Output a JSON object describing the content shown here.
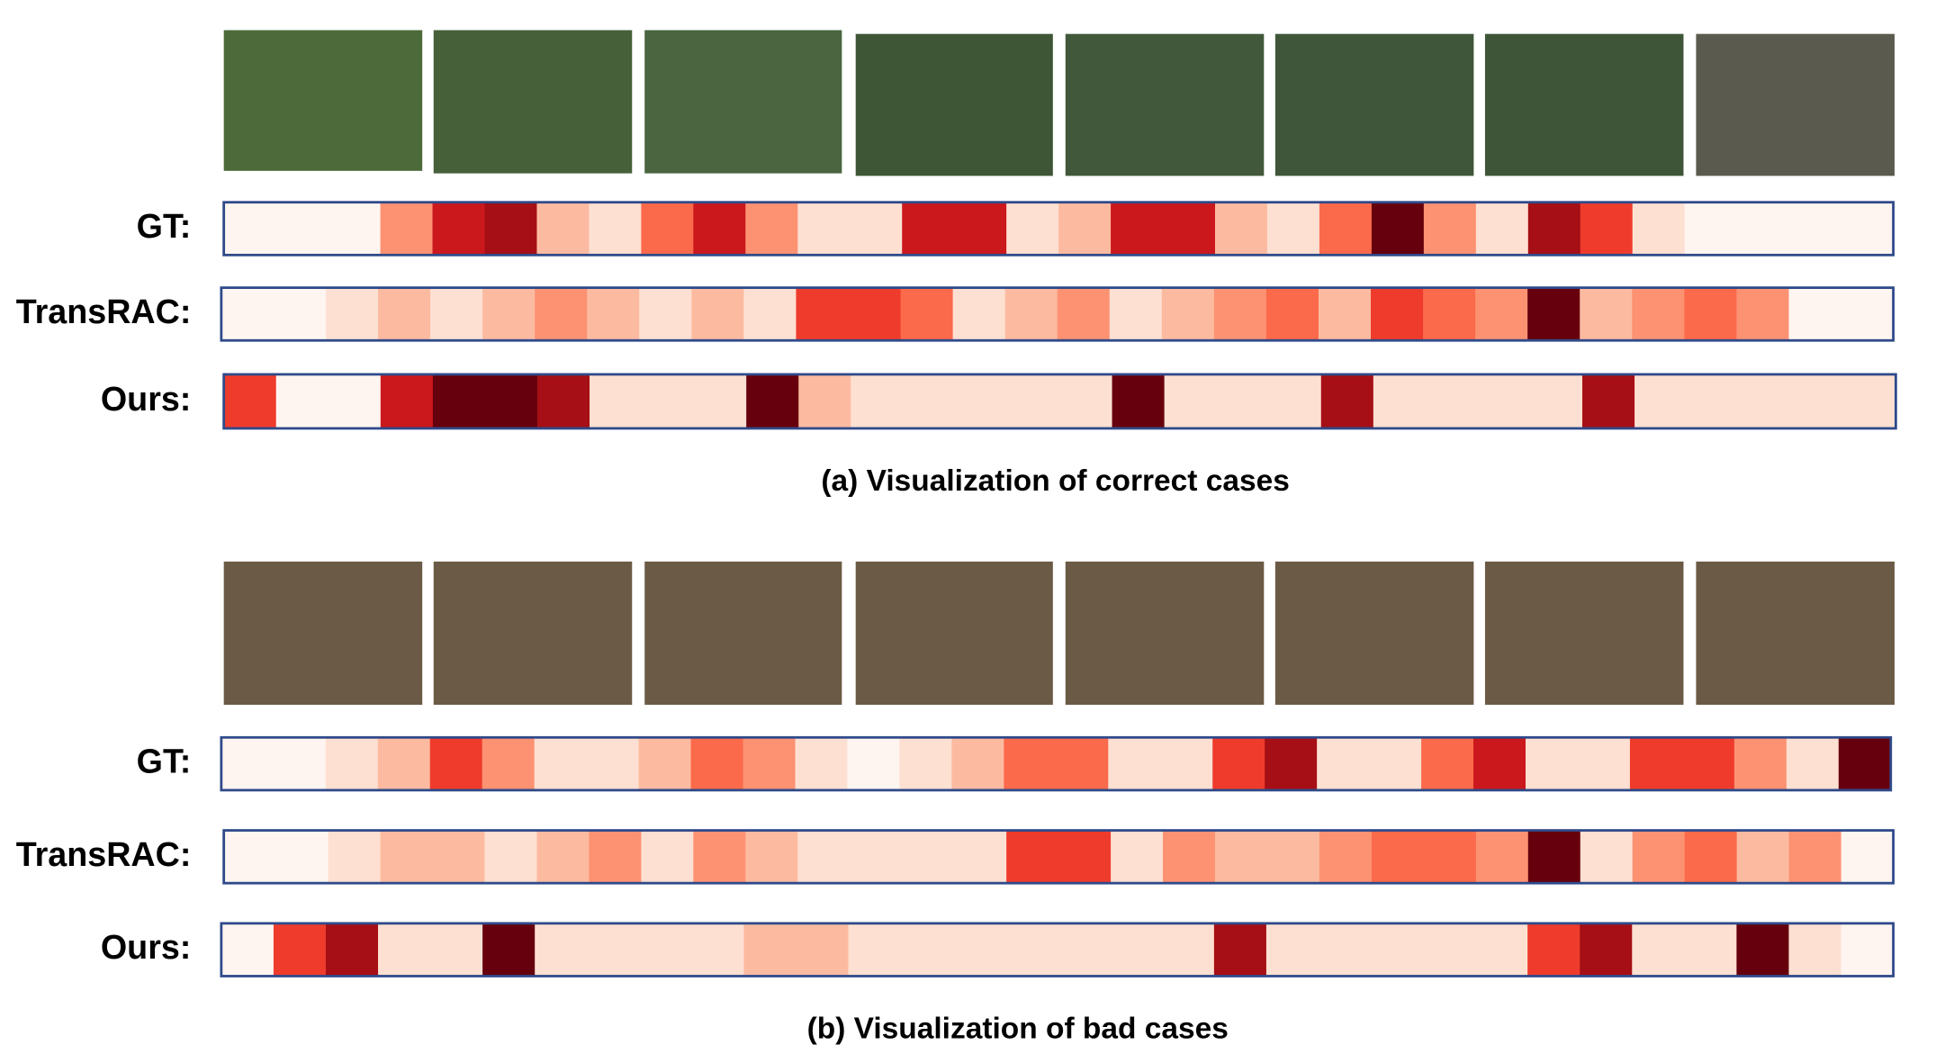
{
  "panels": [
    {
      "caption": "(a) Visualization of correct cases",
      "rows": [
        {
          "label": "GT:",
          "cells": [
            "#fff5f0",
            "#fff5f0",
            "#fff5f0",
            "#fc9272",
            "#cb181d",
            "#a50f15",
            "#fcbba1",
            "#fee0d2",
            "#fb6a4a",
            "#cb181d",
            "#fc9272",
            "#fee0d2",
            "#fee0d2",
            "#cb181d",
            "#cb181d",
            "#fee0d2",
            "#fcbba1",
            "#cb181d",
            "#cb181d",
            "#fcbba1",
            "#fee0d2",
            "#fb6a4a",
            "#67000d",
            "#fc9272",
            "#fee0d2",
            "#a50f15",
            "#ef3b2c",
            "#fee0d2",
            "#fff5f0",
            "#fff5f0",
            "#fff5f0",
            "#fff5f0"
          ]
        },
        {
          "label": "TransRAC:",
          "cells": [
            "#fff5f0",
            "#fff5f0",
            "#fee0d2",
            "#fcbba1",
            "#fee0d2",
            "#fcbba1",
            "#fc9272",
            "#fcbba1",
            "#fee0d2",
            "#fcbba1",
            "#fee0d2",
            "#ef3b2c",
            "#ef3b2c",
            "#fb6a4a",
            "#fee0d2",
            "#fcbba1",
            "#fc9272",
            "#fee0d2",
            "#fcbba1",
            "#fc9272",
            "#fb6a4a",
            "#fcbba1",
            "#ef3b2c",
            "#fb6a4a",
            "#fc9272",
            "#67000d",
            "#fcbba1",
            "#fc9272",
            "#fb6a4a",
            "#fc9272",
            "#fff5f0",
            "#fff5f0"
          ]
        },
        {
          "label": "Ours:",
          "cells": [
            "#ef3b2c",
            "#fff5f0",
            "#fff5f0",
            "#cb181d",
            "#67000d",
            "#67000d",
            "#a50f15",
            "#fee0d2",
            "#fee0d2",
            "#fee0d2",
            "#67000d",
            "#fcbba1",
            "#fee0d2",
            "#fee0d2",
            "#fee0d2",
            "#fee0d2",
            "#fee0d2",
            "#67000d",
            "#fee0d2",
            "#fee0d2",
            "#fee0d2",
            "#a50f15",
            "#fee0d2",
            "#fee0d2",
            "#fee0d2",
            "#fee0d2",
            "#a50f15",
            "#fee0d2",
            "#fee0d2",
            "#fee0d2",
            "#fee0d2",
            "#fee0d2"
          ]
        }
      ]
    },
    {
      "caption": "(b) Visualization of bad cases",
      "rows": [
        {
          "label": "GT:",
          "cells": [
            "#fff5f0",
            "#fff5f0",
            "#fee0d2",
            "#fcbba1",
            "#ef3b2c",
            "#fc9272",
            "#fee0d2",
            "#fee0d2",
            "#fcbba1",
            "#fb6a4a",
            "#fc9272",
            "#fee0d2",
            "#fff5f0",
            "#fee0d2",
            "#fcbba1",
            "#fb6a4a",
            "#fb6a4a",
            "#fee0d2",
            "#fee0d2",
            "#ef3b2c",
            "#a50f15",
            "#fee0d2",
            "#fee0d2",
            "#fb6a4a",
            "#cb181d",
            "#fee0d2",
            "#fee0d2",
            "#ef3b2c",
            "#ef3b2c",
            "#fc9272",
            "#fee0d2",
            "#67000d"
          ]
        },
        {
          "label": "TransRAC:",
          "cells": [
            "#fff5f0",
            "#fff5f0",
            "#fee0d2",
            "#fcbba1",
            "#fcbba1",
            "#fee0d2",
            "#fcbba1",
            "#fc9272",
            "#fee0d2",
            "#fc9272",
            "#fcbba1",
            "#fee0d2",
            "#fee0d2",
            "#fee0d2",
            "#fee0d2",
            "#ef3b2c",
            "#ef3b2c",
            "#fee0d2",
            "#fc9272",
            "#fcbba1",
            "#fcbba1",
            "#fc9272",
            "#fb6a4a",
            "#fb6a4a",
            "#fc9272",
            "#67000d",
            "#fee0d2",
            "#fc9272",
            "#fb6a4a",
            "#fcbba1",
            "#fc9272",
            "#fff5f0"
          ]
        },
        {
          "label": "Ours:",
          "cells": [
            "#fff5f0",
            "#ef3b2c",
            "#a50f15",
            "#fee0d2",
            "#fee0d2",
            "#67000d",
            "#fee0d2",
            "#fee0d2",
            "#fee0d2",
            "#fee0d2",
            "#fcbba1",
            "#fcbba1",
            "#fee0d2",
            "#fee0d2",
            "#fee0d2",
            "#fee0d2",
            "#fee0d2",
            "#fee0d2",
            "#fee0d2",
            "#a50f15",
            "#fee0d2",
            "#fee0d2",
            "#fee0d2",
            "#fee0d2",
            "#fee0d2",
            "#ef3b2c",
            "#a50f15",
            "#fee0d2",
            "#fee0d2",
            "#67000d",
            "#fee0d2",
            "#fff5f0"
          ]
        }
      ]
    }
  ]
}
